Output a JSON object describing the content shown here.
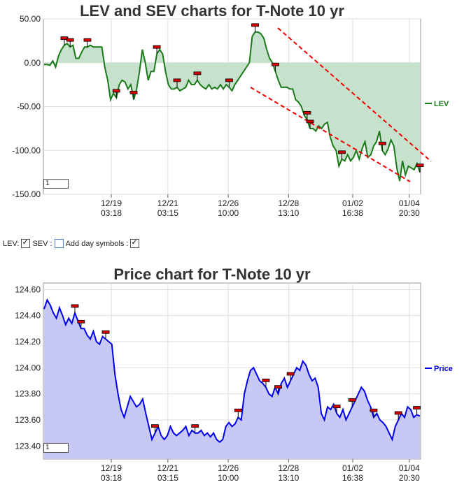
{
  "controls": {
    "lev_label": "LEV:",
    "sev_label": "SEV :",
    "daysym_label": "Add day symbols :",
    "lev_checked": true,
    "sev_checked": false,
    "daysym_checked": true
  },
  "colors": {
    "lev": "#1a7a1a",
    "lev_fill": "#c7e2cc",
    "price": "#0000ee",
    "price_fill": "#c8c8f5",
    "marker": "#dd0000",
    "trend": "#ee0000"
  },
  "chart_data": [
    {
      "type": "line",
      "title": "LEV and SEV charts for T-Note 10 yr",
      "legend": "LEV",
      "zoom_box": "1",
      "ylim": [
        -150,
        50
      ],
      "yticks": [
        "50.00",
        "0.00",
        "-50.00",
        "-100.00",
        "-150.00"
      ],
      "ytick_values": [
        50,
        0,
        -50,
        -100,
        -150
      ],
      "xlim": [
        0,
        100
      ],
      "xticks": [
        {
          "at": 18,
          "date": "12/19",
          "time": "03:18"
        },
        {
          "at": 33,
          "date": "12/21",
          "time": "03:15"
        },
        {
          "at": 49,
          "date": "12/26",
          "time": "10:00"
        },
        {
          "at": 65,
          "date": "12/28",
          "time": "13:10"
        },
        {
          "at": 82,
          "date": "01/02",
          "time": "16:38"
        },
        {
          "at": 97,
          "date": "01/04",
          "time": "20:30"
        }
      ],
      "series": [
        {
          "name": "LEV",
          "points": [
            [
              0,
              -2
            ],
            [
              2,
              -2
            ],
            [
              3,
              -3
            ],
            [
              4,
              2
            ],
            [
              5,
              -5
            ],
            [
              6,
              8
            ],
            [
              7,
              15
            ],
            [
              8,
              20
            ],
            [
              9,
              22
            ],
            [
              10,
              18
            ],
            [
              11,
              20
            ],
            [
              12,
              5
            ],
            [
              13,
              5
            ],
            [
              14,
              12
            ],
            [
              15,
              18
            ],
            [
              16,
              18
            ],
            [
              17,
              20
            ],
            [
              18,
              18
            ],
            [
              19,
              18
            ],
            [
              20,
              18
            ],
            [
              21,
              18
            ],
            [
              22,
              -5
            ],
            [
              23,
              -20
            ],
            [
              24,
              -42
            ],
            [
              25,
              -35
            ],
            [
              26,
              -40
            ],
            [
              27,
              -25
            ],
            [
              28,
              -20
            ],
            [
              29,
              -22
            ],
            [
              30,
              -30
            ],
            [
              31,
              -25
            ],
            [
              32,
              -42
            ],
            [
              33,
              -30
            ],
            [
              34,
              -10
            ],
            [
              35,
              15
            ],
            [
              36,
              0
            ],
            [
              37,
              -20
            ],
            [
              38,
              -10
            ],
            [
              39,
              -10
            ],
            [
              40,
              10
            ],
            [
              41,
              15
            ],
            [
              42,
              10
            ],
            [
              43,
              -10
            ],
            [
              44,
              -25
            ],
            [
              45,
              -30
            ],
            [
              46,
              -30
            ],
            [
              47,
              -28
            ],
            [
              48,
              -32
            ],
            [
              49,
              -30
            ],
            [
              50,
              -28
            ],
            [
              51,
              -20
            ],
            [
              52,
              -25
            ],
            [
              53,
              -25
            ],
            [
              54,
              -20
            ],
            [
              55,
              -25
            ],
            [
              56,
              -28
            ],
            [
              57,
              -30
            ],
            [
              58,
              -25
            ],
            [
              59,
              -30
            ],
            [
              60,
              -28
            ],
            [
              61,
              -30
            ],
            [
              62,
              -25
            ],
            [
              63,
              -30
            ],
            [
              64,
              -25
            ],
            [
              65,
              -28
            ],
            [
              66,
              -32
            ],
            [
              67,
              -25
            ],
            [
              68,
              -20
            ],
            [
              69,
              -15
            ],
            [
              70,
              -10
            ],
            [
              71,
              -5
            ],
            [
              72,
              0
            ],
            [
              73,
              30
            ],
            [
              74,
              35
            ],
            [
              75,
              35
            ],
            [
              76,
              33
            ],
            [
              77,
              28
            ],
            [
              78,
              15
            ],
            [
              79,
              5
            ],
            [
              80,
              0
            ],
            [
              81,
              -10
            ],
            [
              82,
              -20
            ],
            [
              83,
              -28
            ],
            [
              84,
              -28
            ],
            [
              85,
              -28
            ],
            [
              86,
              -30
            ],
            [
              87,
              -30
            ],
            [
              88,
              -42
            ],
            [
              89,
              -45
            ],
            [
              90,
              -50
            ],
            [
              91,
              -60
            ],
            [
              92,
              -65
            ],
            [
              93,
              -75
            ],
            [
              94,
              -75
            ],
            [
              95,
              -78
            ],
            [
              96,
              -72
            ],
            [
              97,
              -75
            ],
            [
              98,
              -70
            ],
            [
              99,
              -68
            ]
          ],
          "tail": [
            [
              100,
              -85
            ],
            [
              101,
              -95
            ],
            [
              102,
              -100
            ],
            [
              103,
              -118
            ],
            [
              104,
              -110
            ],
            [
              105,
              -112
            ],
            [
              106,
              -105
            ],
            [
              107,
              -112
            ],
            [
              108,
              -108
            ],
            [
              109,
              -100
            ],
            [
              110,
              -110
            ],
            [
              111,
              -98
            ],
            [
              112,
              -90
            ],
            [
              113,
              -108
            ],
            [
              114,
              -105
            ],
            [
              115,
              -95
            ],
            [
              116,
              -90
            ],
            [
              117,
              -78
            ],
            [
              118,
              -100
            ],
            [
              119,
              -105
            ],
            [
              120,
              -98
            ],
            [
              121,
              -88
            ],
            [
              122,
              -95
            ],
            [
              123,
              -120
            ],
            [
              124,
              -135
            ],
            [
              125,
              -112
            ],
            [
              126,
              -128
            ],
            [
              127,
              -118
            ],
            [
              128,
              -120
            ],
            [
              129,
              -122
            ],
            [
              130,
              -115
            ],
            [
              131,
              -125
            ]
          ]
        }
      ],
      "markers": [
        7,
        9,
        15,
        25,
        31,
        39,
        46,
        53,
        64,
        73,
        80,
        91,
        92,
        103,
        117,
        130
      ]
    },
    {
      "type": "area",
      "title": "Price chart for T-Note 10 yr",
      "legend": "Price",
      "zoom_box": "1",
      "ylim": [
        123.3,
        124.65
      ],
      "yticks": [
        "124.60",
        "124.40",
        "124.20",
        "124.00",
        "123.80",
        "123.60",
        "123.40"
      ],
      "ytick_values": [
        124.6,
        124.4,
        124.2,
        124.0,
        123.8,
        123.6,
        123.4
      ],
      "xticks": [
        {
          "date": "12/19",
          "time": "03:18"
        },
        {
          "date": "12/21",
          "time": "03:15"
        },
        {
          "date": "12/26",
          "time": "10:00"
        },
        {
          "date": "12/28",
          "time": "13:10"
        },
        {
          "date": "01/02",
          "time": "16:38"
        },
        {
          "date": "01/04",
          "time": "20:30"
        }
      ],
      "series": [
        {
          "name": "Price",
          "points": [
            124.45,
            124.52,
            124.48,
            124.42,
            124.38,
            124.46,
            124.4,
            124.33,
            124.38,
            124.34,
            124.42,
            124.36,
            124.3,
            124.3,
            124.25,
            124.22,
            124.28,
            124.2,
            124.18,
            124.24,
            124.22,
            124.2,
            124.18,
            123.95,
            123.8,
            123.68,
            123.62,
            123.7,
            123.78,
            123.74,
            123.7,
            123.72,
            123.76,
            123.65,
            123.55,
            123.45,
            123.5,
            123.55,
            123.48,
            123.45,
            123.48,
            123.55,
            123.5,
            123.48,
            123.5,
            123.52,
            123.55,
            123.48,
            123.52,
            123.5,
            123.5,
            123.52,
            123.48,
            123.5,
            123.47,
            123.5,
            123.45,
            123.43,
            123.45,
            123.55,
            123.58,
            123.55,
            123.57,
            123.62,
            123.6,
            123.8,
            123.9,
            123.98,
            124.0,
            123.95,
            123.9,
            123.88,
            123.85,
            123.8,
            123.78,
            123.85,
            123.8,
            123.88,
            123.92,
            123.85,
            123.9,
            123.95,
            124.0,
            123.98,
            124.05,
            124.02,
            123.95,
            123.9,
            123.92,
            123.85,
            123.65,
            123.6,
            123.7,
            123.68,
            123.72,
            123.65,
            123.62,
            123.68,
            123.6,
            123.65,
            123.7,
            123.75,
            123.8,
            123.85,
            123.82,
            123.75,
            123.7,
            123.62,
            123.65,
            123.6,
            123.58,
            123.55,
            123.5,
            123.45,
            123.55,
            123.6,
            123.65,
            123.62,
            123.7,
            123.68,
            123.62,
            123.64,
            123.63
          ]
        }
      ],
      "markers": [
        10,
        12,
        20,
        36,
        49,
        63,
        72,
        76,
        80,
        95,
        100,
        107,
        115,
        121
      ]
    }
  ]
}
